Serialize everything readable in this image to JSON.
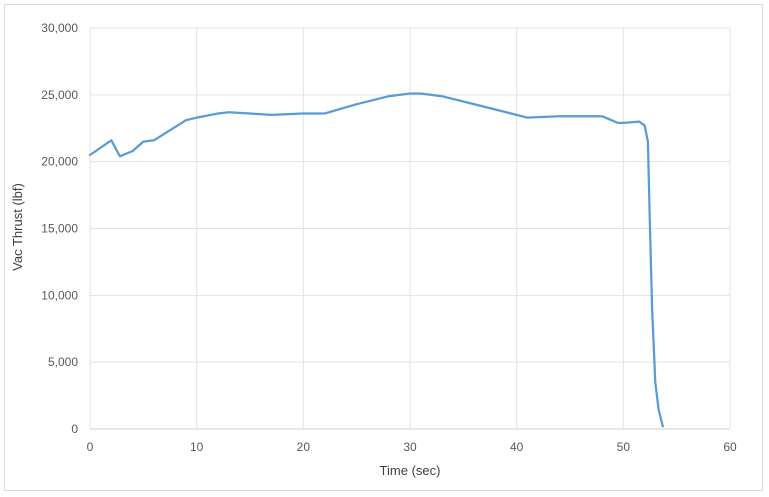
{
  "chart_data": {
    "type": "line",
    "title": "",
    "xlabel": "Time (sec)",
    "ylabel": "Vac Thrust (lbf)",
    "xlim": [
      0,
      60
    ],
    "ylim": [
      0,
      30000
    ],
    "xticks": [
      0,
      10,
      20,
      30,
      40,
      50,
      60
    ],
    "yticks": [
      0,
      5000,
      10000,
      15000,
      20000,
      25000,
      30000
    ],
    "xtick_labels": [
      "0",
      "10",
      "20",
      "30",
      "40",
      "50",
      "60"
    ],
    "ytick_labels": [
      "0",
      "5,000",
      "10,000",
      "15,000",
      "20,000",
      "25,000",
      "30,000"
    ],
    "grid": true,
    "legend": "none",
    "series_color": "#5b9bd5",
    "series": [
      {
        "x": [
          0,
          2,
          2.8,
          4,
          5,
          6,
          7,
          9,
          10,
          12,
          13,
          15,
          17,
          20,
          22,
          25,
          28,
          30,
          31,
          33,
          35,
          38,
          41,
          44,
          48,
          49.5,
          50,
          51.5,
          52,
          52.3,
          52.5,
          52.7,
          53,
          53.3,
          53.7
        ],
        "y": [
          20500,
          21600,
          20400,
          20800,
          21500,
          21600,
          22100,
          23100,
          23300,
          23600,
          23700,
          23600,
          23500,
          23600,
          23600,
          24300,
          24900,
          25100,
          25100,
          24900,
          24500,
          23900,
          23300,
          23400,
          23400,
          22900,
          22900,
          23000,
          22700,
          21500,
          15000,
          9000,
          3500,
          1500,
          200
        ]
      }
    ]
  }
}
